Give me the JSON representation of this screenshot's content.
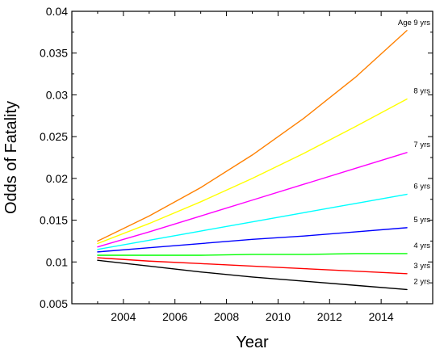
{
  "chart_data": {
    "type": "line",
    "title": "",
    "xlabel": "Year",
    "ylabel": "Odds of Fatality",
    "xlim": [
      2002,
      2016
    ],
    "ylim": [
      0.005,
      0.04
    ],
    "x_ticks": [
      2004,
      2006,
      2008,
      2010,
      2012,
      2014
    ],
    "x_tick_labels": [
      "2004",
      "2006",
      "2008",
      "2010",
      "2012",
      "2014"
    ],
    "y_ticks": [
      0.005,
      0.01,
      0.015,
      0.02,
      0.025,
      0.03,
      0.035,
      0.04
    ],
    "y_tick_labels": [
      "0.005",
      "0.01",
      "0.015",
      "0.02",
      "0.025",
      "0.03",
      "0.035",
      "0.04"
    ],
    "grid": false,
    "legend": "none",
    "x": [
      2003,
      2005,
      2007,
      2009,
      2011,
      2013,
      2015
    ],
    "series": [
      {
        "name": "Age 9 yrs",
        "label": "Age 9 yrs",
        "color": "#ff8000",
        "values": [
          0.0125,
          0.0155,
          0.0189,
          0.0228,
          0.0272,
          0.0321,
          0.0377
        ]
      },
      {
        "name": "8 yrs",
        "label": "8 yrs",
        "color": "#ffff00",
        "values": [
          0.0122,
          0.0146,
          0.0172,
          0.02,
          0.023,
          0.0262,
          0.0295
        ]
      },
      {
        "name": "7 yrs",
        "label": "7 yrs",
        "color": "#ff00ff",
        "values": [
          0.0118,
          0.0136,
          0.0155,
          0.0174,
          0.0193,
          0.0212,
          0.0231
        ]
      },
      {
        "name": "6 yrs",
        "label": "6 yrs",
        "color": "#00ffff",
        "values": [
          0.0115,
          0.0126,
          0.0137,
          0.0148,
          0.0159,
          0.017,
          0.0181
        ]
      },
      {
        "name": "5 yrs",
        "label": "5 yrs",
        "color": "#0000ff",
        "values": [
          0.0112,
          0.0117,
          0.0122,
          0.0127,
          0.0131,
          0.0136,
          0.0141
        ]
      },
      {
        "name": "4 yrs",
        "label": "4 yrs",
        "color": "#00ff00",
        "values": [
          0.0108,
          0.0108,
          0.0108,
          0.0109,
          0.0109,
          0.011,
          0.011
        ]
      },
      {
        "name": "3 yrs",
        "label": "3 yrs",
        "color": "#ff0000",
        "values": [
          0.0105,
          0.0101,
          0.0098,
          0.0095,
          0.0092,
          0.0089,
          0.0086
        ]
      },
      {
        "name": "2 yrs",
        "label": "2 yrs",
        "color": "#000000",
        "values": [
          0.0102,
          0.0095,
          0.0088,
          0.0082,
          0.0077,
          0.0072,
          0.0067
        ]
      }
    ]
  }
}
